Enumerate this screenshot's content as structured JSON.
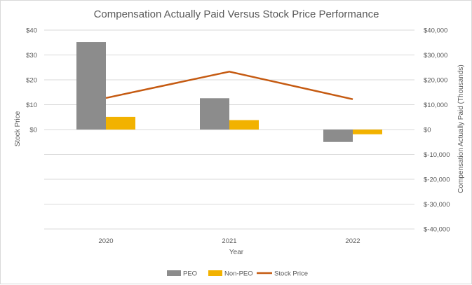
{
  "chart_data": {
    "type": "bar",
    "title": "Compensation Actually Paid Versus Stock Price Performance",
    "xlabel": "Year",
    "ylabel_left": "Stock Price",
    "ylabel_right": "Compensation Actually Paid  (Thousands)",
    "categories": [
      "2020",
      "2021",
      "2022"
    ],
    "left_axis": {
      "ylim": [
        -40,
        40
      ],
      "ticks": [
        40,
        30,
        20,
        10,
        0
      ],
      "tick_labels": [
        "$40",
        "$30",
        "$20",
        "$10",
        "$0"
      ]
    },
    "right_axis": {
      "ylim": [
        -40000,
        40000
      ],
      "ticks": [
        40000,
        30000,
        20000,
        10000,
        0,
        -10000,
        -20000,
        -30000,
        -40000
      ],
      "tick_labels": [
        "$40,000",
        "$30,000",
        "$20,000",
        "$10,000",
        "$0",
        "$-10,000",
        "$-20,000",
        "$-30,000",
        "$-40,000"
      ]
    },
    "series": [
      {
        "name": "PEO",
        "type": "bar",
        "axis": "right",
        "color": "#8c8c8c",
        "values": [
          35200,
          12600,
          -5000
        ]
      },
      {
        "name": "Non-PEO",
        "type": "bar",
        "axis": "right",
        "color": "#f2b200",
        "values": [
          5100,
          3800,
          -1900
        ]
      },
      {
        "name": "Stock Price",
        "type": "line",
        "axis": "left",
        "color": "#c55a11",
        "values": [
          12.7,
          23.3,
          12.2
        ]
      }
    ],
    "grid": true,
    "legend_position": "bottom"
  }
}
